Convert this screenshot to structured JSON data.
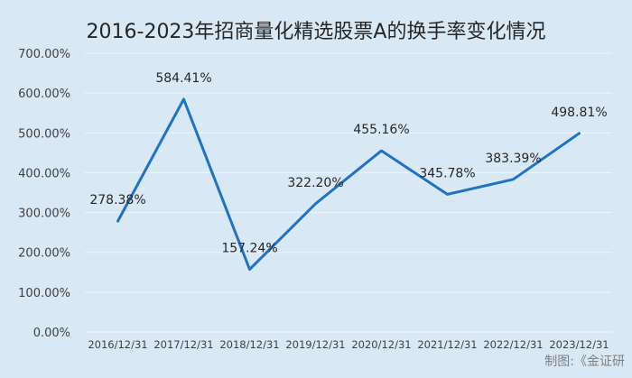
{
  "chart_data": {
    "type": "line",
    "title": "2016-2023年招商量化精选股票A的换手率变化情况",
    "x": [
      "2016/12/31",
      "2017/12/31",
      "2018/12/31",
      "2019/12/31",
      "2020/12/31",
      "2021/12/31",
      "2022/12/31",
      "2023/12/31"
    ],
    "values": [
      278.38,
      584.41,
      157.24,
      322.2,
      455.16,
      345.78,
      383.39,
      498.81
    ],
    "data_labels": [
      "278.38%",
      "584.41%",
      "157.24%",
      "322.20%",
      "455.16%",
      "345.78%",
      "383.39%",
      "498.81%"
    ],
    "ylim": [
      0,
      700
    ],
    "y_ticks": [
      "0.00%",
      "100.00%",
      "200.00%",
      "300.00%",
      "400.00%",
      "500.00%",
      "600.00%",
      "700.00%"
    ],
    "grid": true,
    "line_color": "#1f73c2",
    "background": "#d9e8f5"
  },
  "source_note": "制图:《金证研"
}
